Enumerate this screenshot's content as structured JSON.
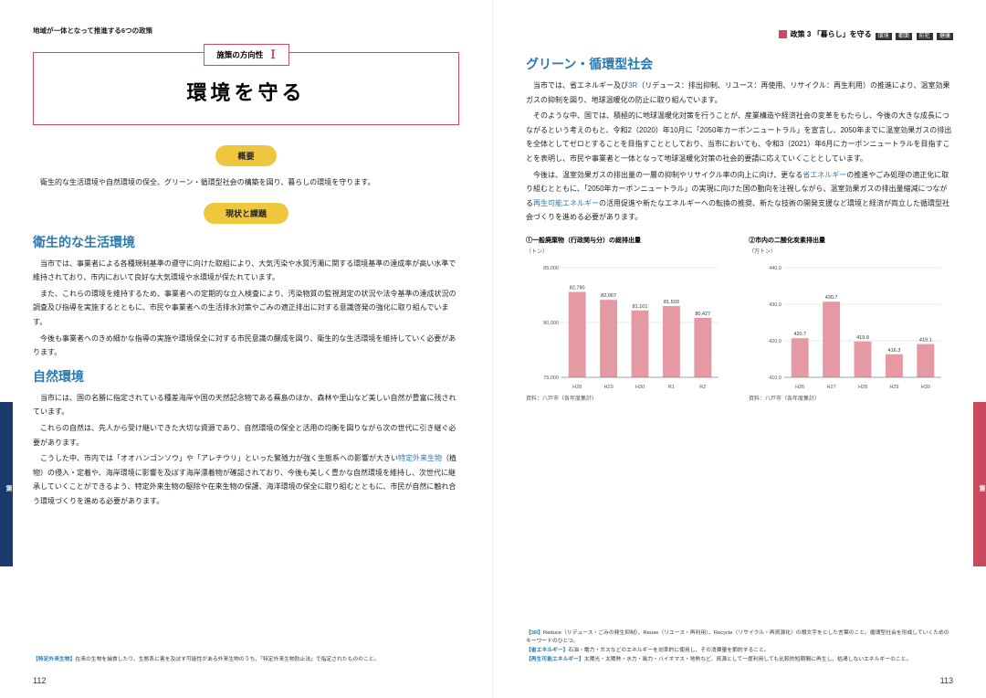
{
  "left": {
    "header": "地域が一体となって推進する6つの政策",
    "titleBox": {
      "label": "施策の方向性",
      "roman": "Ⅰ",
      "main": "環境を守る"
    },
    "pill1": "概要",
    "overview": "衛生的な生活環境や自然環境の保全、グリーン・循環型社会の構築を図り、暮らしの環境を守ります。",
    "pill2": "現状と課題",
    "sec1": {
      "h": "衛生的な生活環境",
      "p1": "当市では、事業者による各種規制基準の遵守に向けた取組により、大気汚染や水質汚濁に関する環境基準の達成率が高い水準で維持されており、市内において良好な大気環境や水環境が保たれています。",
      "p2": "また、これらの環境を維持するため、事業者への定期的な立入検査により、汚染物質の監視測定の状況や法令基準の達成状況の調査及び指導を実施するとともに、市民や事業者への生活排水対策やごみの適正排出に対する意識啓発の強化に取り組んでいます。",
      "p3": "今後も事業者へのきめ細かな指導の実施や環境保全に対する市民意識の醸成を図り、衛生的な生活環境を維持していく必要があります。"
    },
    "sec2": {
      "h": "自然環境",
      "p1": "当市には、国の名勝に指定されている種差海岸や国の天然記念物である蕪島のほか、森林や里山など美しい自然が豊富に残されています。",
      "p2": "これらの自然は、先人から受け継いできた大切な資源であり、自然環境の保全と活用の均衡を図りながら次の世代に引き継ぐ必要があります。",
      "p3a": "こうした中、市内では「オオハンゴンソウ」や「アレチウリ」といった繁殖力が強く生態系への影響が大きい",
      "p3k": "特定外来生物",
      "p3b": "（植物）の侵入・定着や、海岸環境に影響を及ぼす海岸漂着物が確認されており、今後も美しく豊かな自然環境を維持し、次世代に継承していくことができるよう、特定外来生物の駆除や在来生物の保護、海洋環境の保全に取り組むとともに、市民が自然に触れ合う環境づくりを進める必要があります。"
    },
    "footnote": {
      "k": "【特定外来生物】",
      "t": "在来の生物を捕食したり、生態系に害を及ぼす可能性がある外来生物のうち、「特定外来生物防止法」で指定されたもののこと。"
    },
    "pageNum": "112"
  },
  "right": {
    "header": {
      "title": "政策 3 「暮らし」を守る",
      "tags": [
        "環境",
        "都面",
        "防犯",
        "健康"
      ]
    },
    "sec": {
      "h": "グリーン・循環型社会",
      "p1a": "当市では、省エネルギー及び",
      "p1k": "3R",
      "p1b": "（リデュース：排出抑制、リユース：再使用、リサイクル：再生利用）の推進により、温室効果ガスの抑制を図り、地球温暖化の防止に取り組んでいます。",
      "p2": "そのような中、国では、積極的に地球温暖化対策を行うことが、産業構造や経済社会の変革をもたらし、今後の大きな成長につながるという考えのもと、令和2（2020）年10月に「2050年カーボンニュートラル」を宣言し、2050年までに温室効果ガスの排出を全体としてゼロとすることを目指すこととしており、当市においても、令和3（2021）年6月にカーボンニュートラルを目指すことを表明し、市民や事業者と一体となって地球温暖化対策の社会的要請に応えていくこととしています。",
      "p3a": "今後は、温室効果ガスの排出量の一層の抑制やリサイクル率の向上に向け、更なる",
      "p3k1": "省エネルギー",
      "p3b": "の推進やごみ処理の適正化に取り組むとともに、「2050年カーボンニュートラル」の実現に向けた国の動向を注視しながら、温室効果ガスの排出量縮減につながる",
      "p3k2": "再生可能エネルギー",
      "p3c": "の活用促進や新たなエネルギーへの転換の推奨、新たな技術の開発支援など環境と経済が両立した循環型社会づくりを進める必要があります。"
    },
    "chart1": {
      "title": "①一般廃棄物（行政関与分）の総排出量",
      "unit": "（トン）",
      "categories": [
        "H28",
        "H29",
        "H30",
        "R1",
        "R2"
      ],
      "values": [
        82790,
        82067,
        81101,
        81503,
        80427
      ],
      "valueLabels": [
        "82,790",
        "82,067",
        "81,101",
        "81,503",
        "80,427"
      ],
      "ylim": [
        75000,
        85000
      ],
      "yticks": [
        75000,
        80000,
        85000
      ],
      "ytickLabels": [
        "75,000",
        "80,000",
        "85,000"
      ],
      "barColor": "#e59aa3",
      "gridColor": "#d0d0d0",
      "source": "資料：八戸市（各年度集計）"
    },
    "chart2": {
      "title": "②市内の二酸化炭素排出量",
      "unit": "（万トン）",
      "categories": [
        "H26",
        "H27",
        "H28",
        "H29",
        "H30"
      ],
      "values": [
        420.7,
        430.7,
        419.8,
        416.3,
        419.1
      ],
      "valueLabels": [
        "420.7",
        "430.7",
        "419.8",
        "416.3",
        "419.1"
      ],
      "ylim": [
        410,
        440
      ],
      "yticks": [
        410,
        420,
        430,
        440
      ],
      "ytickLabels": [
        "410.0",
        "420.0",
        "430.0",
        "440.0"
      ],
      "barColor": "#e59aa3",
      "gridColor": "#d0d0d0",
      "source": "資料：八戸市（各年度集計）"
    },
    "footnotes": [
      {
        "k": "【3R】",
        "t": "Reduce（リデュース・ごみの発生抑制）、Reuse（リユース・再利用）、Recycle（リサイクル・再資源化）の頭文字をとした言葉のこと。循環型社会を形成していくためのキーワードのひとつ。"
      },
      {
        "k": "【省エネルギー】",
        "t": "石油・電力・ガスなどのエネルギーを効率的に使用し、その消費量を節約すること。"
      },
      {
        "k": "【再生可能エネルギー】",
        "t": "太陽光・太陽熱・水力・風力・バイオマス・地熱など、資源として一度利用しても比較的短期間に再生し、枯渇しないエネルギーのこと。"
      }
    ],
    "pageNum": "113"
  },
  "sideTab": {
    "chapter": "第",
    "num": "5",
    "suf": "章",
    "text": "地域が一体となって推進する６つの政策"
  }
}
